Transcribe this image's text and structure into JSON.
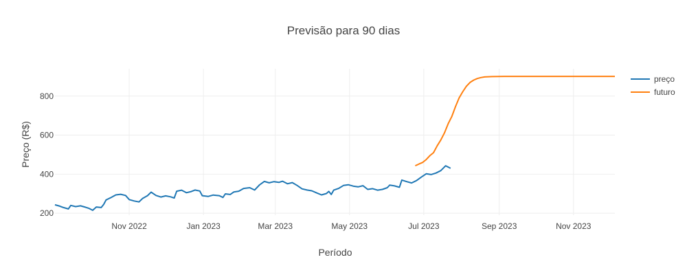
{
  "chart_data": {
    "type": "line",
    "title": "Previsão para 90 dias",
    "xlabel": "Período",
    "ylabel": "Preço (R$)",
    "x_range": [
      "2022-09-01",
      "2023-12-05"
    ],
    "ylim": [
      190,
      940
    ],
    "yticks": [
      200,
      400,
      600,
      800
    ],
    "xticks": [
      {
        "date": "2022-11-01",
        "label": "Nov 2022"
      },
      {
        "date": "2023-01-01",
        "label": "Jan 2023"
      },
      {
        "date": "2023-03-01",
        "label": "Mar 2023"
      },
      {
        "date": "2023-05-01",
        "label": "May 2023"
      },
      {
        "date": "2023-07-01",
        "label": "Jul 2023"
      },
      {
        "date": "2023-09-01",
        "label": "Sep 2023"
      },
      {
        "date": "2023-11-01",
        "label": "Nov 2023"
      }
    ],
    "grid": true,
    "legend": "top-right",
    "series": [
      {
        "name": "preço",
        "color": "#1f77b4",
        "points": [
          [
            "2022-09-01",
            243
          ],
          [
            "2022-09-05",
            236
          ],
          [
            "2022-09-08",
            229
          ],
          [
            "2022-09-12",
            222
          ],
          [
            "2022-09-14",
            240
          ],
          [
            "2022-09-18",
            234
          ],
          [
            "2022-09-22",
            238
          ],
          [
            "2022-09-26",
            231
          ],
          [
            "2022-09-29",
            225
          ],
          [
            "2022-10-02",
            215
          ],
          [
            "2022-10-05",
            232
          ],
          [
            "2022-10-09",
            229
          ],
          [
            "2022-10-11",
            245
          ],
          [
            "2022-10-13",
            268
          ],
          [
            "2022-10-17",
            280
          ],
          [
            "2022-10-21",
            294
          ],
          [
            "2022-10-25",
            297
          ],
          [
            "2022-10-29",
            291
          ],
          [
            "2022-11-01",
            270
          ],
          [
            "2022-11-05",
            263
          ],
          [
            "2022-11-09",
            258
          ],
          [
            "2022-11-12",
            276
          ],
          [
            "2022-11-16",
            290
          ],
          [
            "2022-11-19",
            308
          ],
          [
            "2022-11-23",
            291
          ],
          [
            "2022-11-27",
            283
          ],
          [
            "2022-12-01",
            289
          ],
          [
            "2022-12-05",
            284
          ],
          [
            "2022-12-08",
            278
          ],
          [
            "2022-12-10",
            313
          ],
          [
            "2022-12-14",
            318
          ],
          [
            "2022-12-18",
            305
          ],
          [
            "2022-12-22",
            311
          ],
          [
            "2022-12-25",
            319
          ],
          [
            "2022-12-29",
            314
          ],
          [
            "2022-12-31",
            290
          ],
          [
            "2023-01-05",
            286
          ],
          [
            "2023-01-09",
            293
          ],
          [
            "2023-01-14",
            290
          ],
          [
            "2023-01-17",
            281
          ],
          [
            "2023-01-19",
            299
          ],
          [
            "2023-01-23",
            296
          ],
          [
            "2023-01-26",
            309
          ],
          [
            "2023-01-30",
            313
          ],
          [
            "2023-02-03",
            327
          ],
          [
            "2023-02-08",
            331
          ],
          [
            "2023-02-12",
            319
          ],
          [
            "2023-02-16",
            345
          ],
          [
            "2023-02-20",
            363
          ],
          [
            "2023-02-24",
            356
          ],
          [
            "2023-02-28",
            362
          ],
          [
            "2023-03-04",
            358
          ],
          [
            "2023-03-07",
            364
          ],
          [
            "2023-03-11",
            351
          ],
          [
            "2023-03-15",
            357
          ],
          [
            "2023-03-19",
            342
          ],
          [
            "2023-03-23",
            325
          ],
          [
            "2023-03-27",
            319
          ],
          [
            "2023-03-31",
            315
          ],
          [
            "2023-04-04",
            304
          ],
          [
            "2023-04-08",
            294
          ],
          [
            "2023-04-12",
            301
          ],
          [
            "2023-04-14",
            312
          ],
          [
            "2023-04-16",
            296
          ],
          [
            "2023-04-18",
            318
          ],
          [
            "2023-04-22",
            327
          ],
          [
            "2023-04-26",
            342
          ],
          [
            "2023-04-30",
            346
          ],
          [
            "2023-05-04",
            339
          ],
          [
            "2023-05-08",
            335
          ],
          [
            "2023-05-12",
            341
          ],
          [
            "2023-05-16",
            322
          ],
          [
            "2023-05-20",
            326
          ],
          [
            "2023-05-24",
            318
          ],
          [
            "2023-05-28",
            322
          ],
          [
            "2023-06-01",
            331
          ],
          [
            "2023-06-03",
            344
          ],
          [
            "2023-06-07",
            340
          ],
          [
            "2023-06-11",
            333
          ],
          [
            "2023-06-13",
            370
          ],
          [
            "2023-06-17",
            362
          ],
          [
            "2023-06-21",
            355
          ],
          [
            "2023-06-25",
            367
          ],
          [
            "2023-06-29",
            385
          ],
          [
            "2023-07-03",
            402
          ],
          [
            "2023-07-07",
            398
          ],
          [
            "2023-07-11",
            406
          ],
          [
            "2023-07-15",
            418
          ],
          [
            "2023-07-19",
            443
          ],
          [
            "2023-07-23",
            430
          ]
        ]
      },
      {
        "name": "futuro",
        "color": "#ff7f0e",
        "points": [
          [
            "2023-06-24",
            443
          ],
          [
            "2023-06-27",
            452
          ],
          [
            "2023-06-30",
            460
          ],
          [
            "2023-07-03",
            475
          ],
          [
            "2023-07-06",
            495
          ],
          [
            "2023-07-09",
            510
          ],
          [
            "2023-07-12",
            545
          ],
          [
            "2023-07-15",
            575
          ],
          [
            "2023-07-18",
            612
          ],
          [
            "2023-07-21",
            658
          ],
          [
            "2023-07-24",
            695
          ],
          [
            "2023-07-27",
            745
          ],
          [
            "2023-07-30",
            790
          ],
          [
            "2023-08-02",
            822
          ],
          [
            "2023-08-05",
            850
          ],
          [
            "2023-08-08",
            870
          ],
          [
            "2023-08-11",
            882
          ],
          [
            "2023-08-14",
            890
          ],
          [
            "2023-08-17",
            895
          ],
          [
            "2023-08-20",
            898
          ],
          [
            "2023-08-26",
            900
          ],
          [
            "2023-09-05",
            901
          ],
          [
            "2023-10-01",
            901
          ],
          [
            "2023-12-05",
            901
          ]
        ]
      }
    ]
  }
}
